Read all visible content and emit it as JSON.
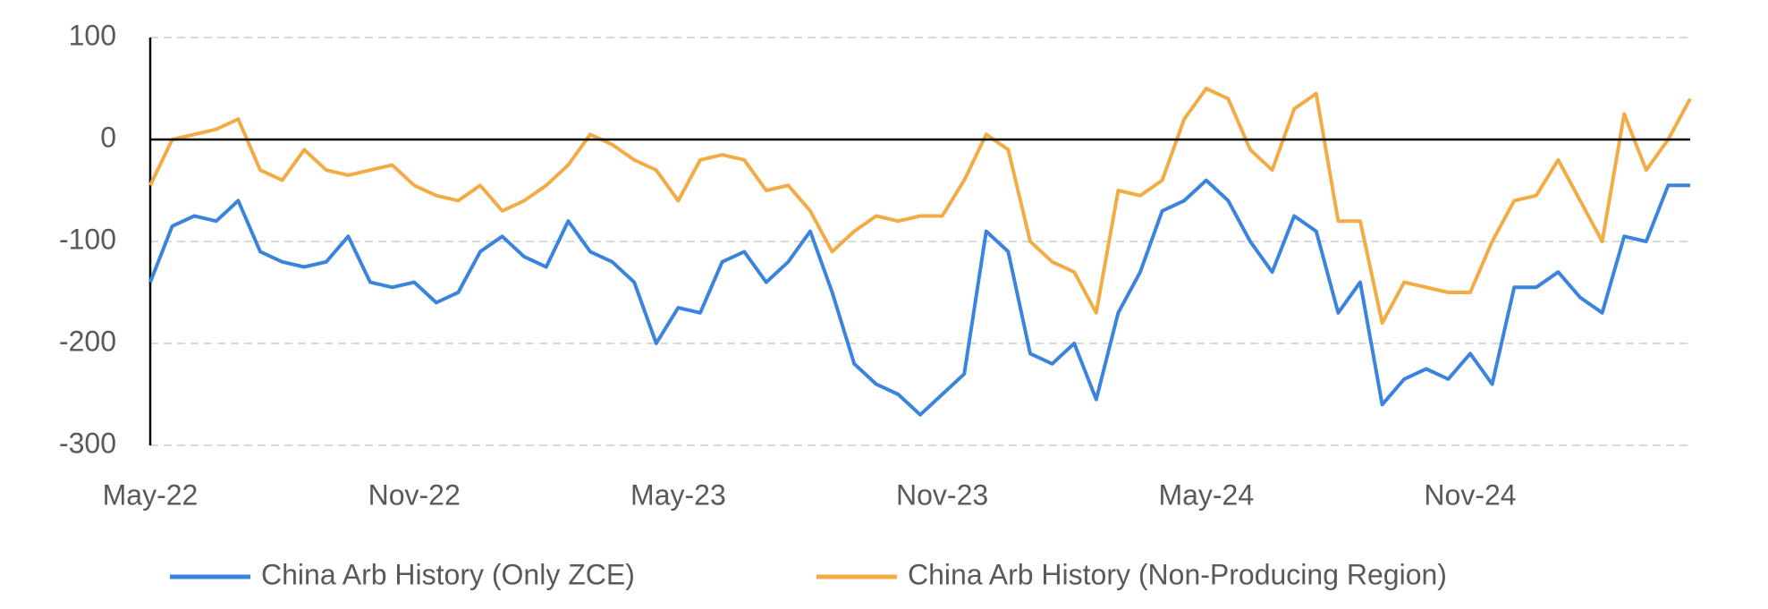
{
  "chart_data": {
    "type": "line",
    "categories": [
      "May-22",
      null,
      null,
      null,
      null,
      null,
      null,
      null,
      null,
      null,
      null,
      null,
      "Nov-22",
      null,
      null,
      null,
      null,
      null,
      null,
      null,
      null,
      null,
      null,
      null,
      "May-23",
      null,
      null,
      null,
      null,
      null,
      null,
      null,
      null,
      null,
      null,
      null,
      "Nov-23",
      null,
      null,
      null,
      null,
      null,
      null,
      null,
      null,
      null,
      null,
      null,
      "May-24",
      null,
      null,
      null,
      null,
      null,
      null,
      null,
      null,
      null,
      null,
      null,
      "Nov-24",
      null,
      null,
      null,
      null,
      null,
      null,
      null,
      null,
      null,
      null
    ],
    "series": [
      {
        "name": "China Arb History (Only ZCE)",
        "color": "#3a84de",
        "values": [
          -140,
          -85,
          -75,
          -80,
          -60,
          -110,
          -120,
          -125,
          -120,
          -95,
          -140,
          -145,
          -140,
          -160,
          -150,
          -110,
          -95,
          -115,
          -125,
          -80,
          -110,
          -120,
          -140,
          -200,
          -165,
          -170,
          -120,
          -110,
          -140,
          -120,
          -90,
          -150,
          -220,
          -240,
          -250,
          -270,
          -250,
          -230,
          -90,
          -110,
          -210,
          -220,
          -200,
          -255,
          -170,
          -130,
          -70,
          -60,
          -40,
          -60,
          -100,
          -130,
          -75,
          -90,
          -170,
          -140,
          -260,
          -235,
          -225,
          -235,
          -210,
          -240,
          -145,
          -145,
          -130,
          -155,
          -170,
          -95,
          -100,
          -45,
          -45
        ]
      },
      {
        "name": "China Arb History (Non-Producing Region)",
        "color": "#f2ab45",
        "values": [
          -45,
          0,
          5,
          10,
          20,
          -30,
          -40,
          -10,
          -30,
          -35,
          -30,
          -25,
          -45,
          -55,
          -60,
          -45,
          -70,
          -60,
          -45,
          -25,
          5,
          -5,
          -20,
          -30,
          -60,
          -20,
          -15,
          -20,
          -50,
          -45,
          -70,
          -110,
          -90,
          -75,
          -80,
          -75,
          -75,
          -40,
          5,
          -10,
          -100,
          -120,
          -130,
          -170,
          -50,
          -55,
          -40,
          20,
          50,
          40,
          -10,
          -30,
          30,
          45,
          -80,
          -80,
          -180,
          -140,
          -145,
          -150,
          -150,
          -100,
          -60,
          -55,
          -20,
          -60,
          -100,
          25,
          -30,
          0,
          40
        ]
      }
    ],
    "ylim": [
      -300,
      100
    ],
    "yticks": [
      -300,
      -200,
      -100,
      0,
      100
    ],
    "grid": true
  }
}
